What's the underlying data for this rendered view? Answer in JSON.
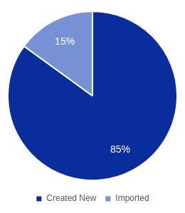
{
  "chart_data": {
    "type": "pie",
    "categories": [
      "Created New",
      "Imported"
    ],
    "values": [
      85,
      15
    ],
    "value_labels": [
      "85%",
      "15%"
    ],
    "colors": [
      "#0a2d9e",
      "#7891d5"
    ],
    "data_labels": true,
    "legend": "bottom"
  }
}
